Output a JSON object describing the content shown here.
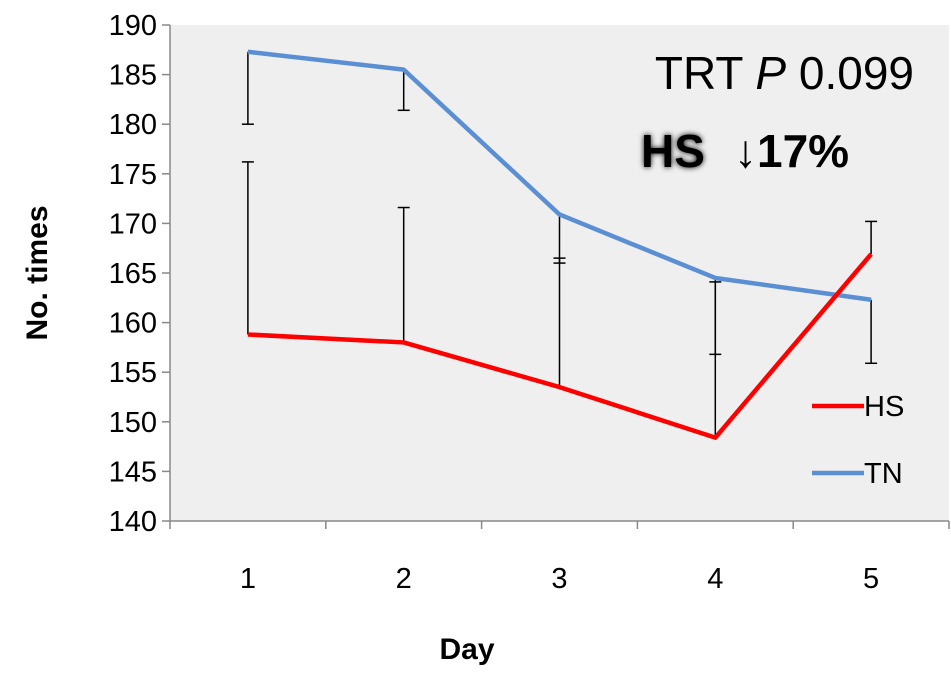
{
  "chart_data": {
    "type": "line",
    "xlabel": "Day",
    "ylabel": "No. times",
    "categories": [
      "1",
      "2",
      "3",
      "4",
      "5"
    ],
    "ylim": [
      140,
      190
    ],
    "yticks": [
      "140",
      "145",
      "150",
      "155",
      "160",
      "165",
      "170",
      "175",
      "180",
      "185",
      "190"
    ],
    "series": [
      {
        "name": "HS",
        "color": "#ff0000",
        "values": [
          158.8,
          158.0,
          153.5,
          148.4,
          166.9
        ],
        "error_upper": [
          176.2,
          171.6,
          166.5,
          164.1,
          170.2
        ]
      },
      {
        "name": "TN",
        "color": "#5b8fd3",
        "values": [
          187.3,
          185.5,
          170.9,
          164.5,
          162.3
        ],
        "error_lower": [
          180.0,
          181.4,
          166.0,
          156.8,
          155.9
        ]
      }
    ],
    "annotations": {
      "line1_prefix": "TRT",
      "line1_p": "P",
      "line1_value": "0.099",
      "line2_hs": "HS",
      "line2_change": "↓17%"
    },
    "legend_position": "right"
  }
}
